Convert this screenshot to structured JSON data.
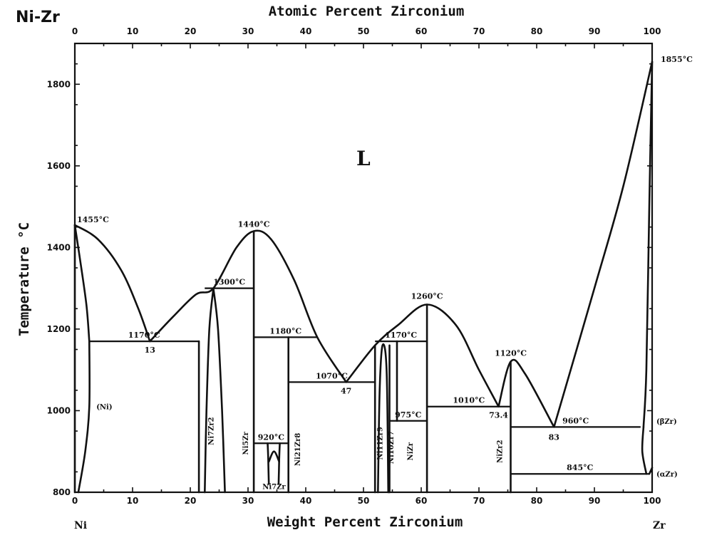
{
  "chart_data": {
    "type": "line",
    "title": "Ni-Zr",
    "xlabel_top": "Atomic Percent Zirconium",
    "xlabel": "Weight Percent Zirconium",
    "ylabel": "Temperature °C",
    "xlim": [
      0,
      100
    ],
    "ylim": [
      800,
      1900
    ],
    "x_ticks_bottom": [
      0,
      10,
      20,
      30,
      40,
      50,
      60,
      70,
      80,
      90,
      100
    ],
    "x_ticks_top": [
      0,
      10,
      20,
      30,
      40,
      50,
      60,
      70,
      80,
      90,
      100
    ],
    "y_ticks": [
      800,
      1000,
      1200,
      1400,
      1600,
      1800
    ],
    "x_end_labels": [
      "Ni",
      "Zr"
    ],
    "region_label": "L",
    "liquidus": [
      [
        0,
        1455
      ],
      [
        4,
        1420
      ],
      [
        8,
        1345
      ],
      [
        11,
        1250
      ],
      [
        13,
        1170
      ],
      [
        17,
        1230
      ],
      [
        21,
        1285
      ],
      [
        24,
        1300
      ],
      [
        28,
        1400
      ],
      [
        31,
        1440
      ],
      [
        34,
        1420
      ],
      [
        38,
        1320
      ],
      [
        42,
        1180
      ],
      [
        47,
        1070
      ],
      [
        52,
        1160
      ],
      [
        56,
        1210
      ],
      [
        61,
        1260
      ],
      [
        66,
        1210
      ],
      [
        70,
        1100
      ],
      [
        73.4,
        1010
      ],
      [
        75.5,
        1120
      ],
      [
        78,
        1090
      ],
      [
        83,
        960
      ],
      [
        90,
        1300
      ],
      [
        95,
        1550
      ],
      [
        100,
        1855
      ]
    ],
    "invariant_lines": [
      {
        "t": 1170,
        "x": [
          2.5,
          21.5
        ],
        "label": "1170°C"
      },
      {
        "t": 1300,
        "x": [
          22.5,
          31
        ],
        "label": "1300°C"
      },
      {
        "t": 1180,
        "x": [
          31,
          42
        ],
        "label": "1180°C"
      },
      {
        "t": 1070,
        "x": [
          37,
          52
        ],
        "label": "1070°C"
      },
      {
        "t": 920,
        "x": [
          31,
          37
        ],
        "label": "920°C"
      },
      {
        "t": 1170,
        "x": [
          52,
          61
        ],
        "label": "1170°C"
      },
      {
        "t": 975,
        "x": [
          54.5,
          61
        ],
        "label": "975°C"
      },
      {
        "t": 1010,
        "x": [
          61,
          75.5
        ],
        "label": "1010°C"
      },
      {
        "t": 960,
        "x": [
          75.5,
          98
        ],
        "label": "960°C"
      },
      {
        "t": 845,
        "x": [
          75.5,
          99.5
        ],
        "label": "845°C"
      }
    ],
    "annotations": [
      {
        "text": "1455°C",
        "x": 0,
        "t": 1455
      },
      {
        "text": "13",
        "x": 13,
        "t": 1170
      },
      {
        "text": "1440°C",
        "x": 31,
        "t": 1440
      },
      {
        "text": "47",
        "x": 47,
        "t": 1070
      },
      {
        "text": "1260°C",
        "x": 61,
        "t": 1260
      },
      {
        "text": "1120°C",
        "x": 75.5,
        "t": 1120
      },
      {
        "text": "73.4",
        "x": 73.4,
        "t": 1010
      },
      {
        "text": "83",
        "x": 83,
        "t": 960
      },
      {
        "text": "1855°C",
        "x": 100,
        "t": 1855
      }
    ],
    "phases": [
      {
        "text": "(Ni)",
        "x": 2,
        "t": 1010
      },
      {
        "text": "Ni7Zr2",
        "x": 24,
        "t": 950
      },
      {
        "text": "Ni5Zr",
        "x": 30,
        "t": 920
      },
      {
        "text": "Ni21Zr8",
        "x": 39,
        "t": 905
      },
      {
        "text": "Ni7Zr",
        "x": 34.5,
        "t": 815
      },
      {
        "text": "Ni11Zr9",
        "x": 53.3,
        "t": 920
      },
      {
        "text": "Ni10Zr7",
        "x": 55.2,
        "t": 910
      },
      {
        "text": "NiZr",
        "x": 58.5,
        "t": 900
      },
      {
        "text": "NiZr2",
        "x": 74,
        "t": 900
      },
      {
        "text": "(βZr)",
        "x": 101,
        "t": 975
      },
      {
        "text": "(αZr)",
        "x": 101,
        "t": 845
      }
    ]
  }
}
